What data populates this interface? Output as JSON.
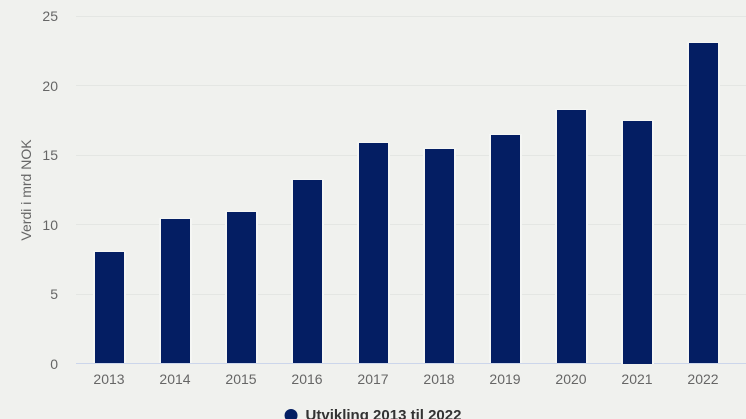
{
  "chart_data": {
    "type": "bar",
    "categories": [
      "2013",
      "2014",
      "2015",
      "2016",
      "2017",
      "2018",
      "2019",
      "2020",
      "2021",
      "2022"
    ],
    "values": [
      8.1,
      10.5,
      11.0,
      13.3,
      15.9,
      15.5,
      16.5,
      18.3,
      17.5,
      23.1
    ],
    "title": "",
    "xlabel": "",
    "ylabel": "Verdi i mrd NOK",
    "ylim": [
      0,
      25
    ],
    "yticks": [
      0,
      5,
      10,
      15,
      20,
      25
    ],
    "grid": true,
    "legend": {
      "label": "Utvikling 2013 til 2022",
      "position": "bottom-center",
      "marker": "circle-icon"
    },
    "colors": {
      "background": "#f0f1ee",
      "bar": "#041e63",
      "bar_border": "#f5f6f4",
      "gridline": "#e4e6e3",
      "axis_line": "#ccd6eb",
      "tick_label": "#666666",
      "axis_title": "#666666",
      "legend_text": "#333333"
    }
  }
}
